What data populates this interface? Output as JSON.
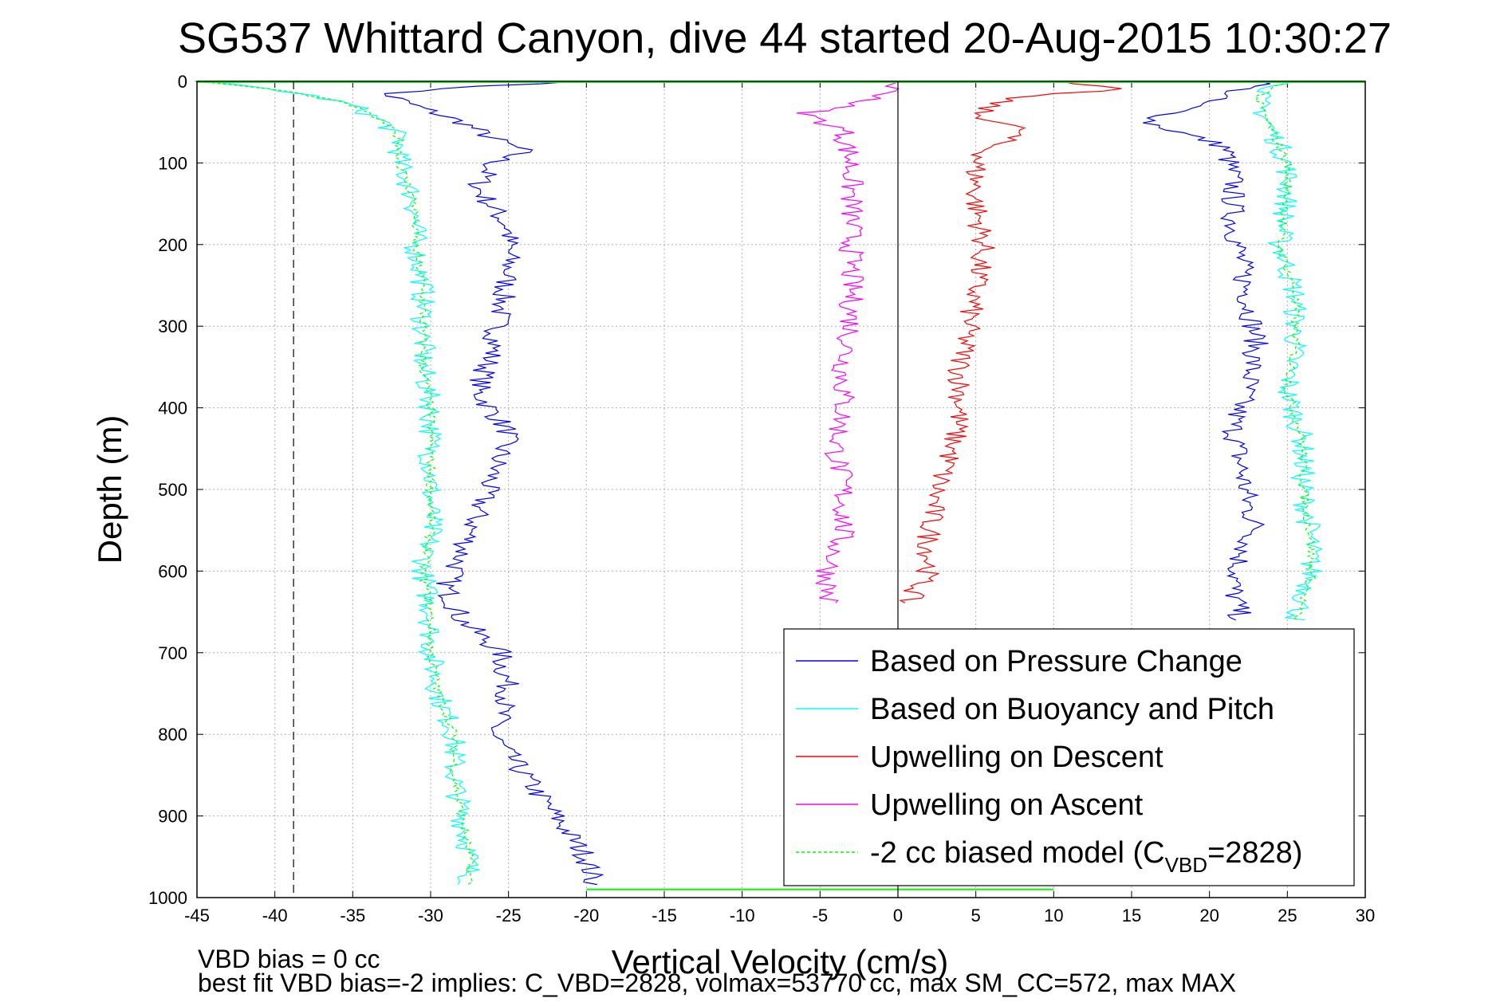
{
  "chart_data": {
    "type": "line",
    "title": "SG537 Whittard Canyon, dive 44 started 20-Aug-2015 10:30:27",
    "xlabel": "Vertical Velocity (cm/s)",
    "ylabel": "Depth (m)",
    "xlim": [
      -45,
      30
    ],
    "ylim": [
      0,
      1000
    ],
    "y_reversed": true,
    "grid": true,
    "x_ticks": [
      "-45",
      "-40",
      "-35",
      "-30",
      "-25",
      "-20",
      "-15",
      "-10",
      "-5",
      "0",
      "5",
      "10",
      "15",
      "20",
      "25",
      "30"
    ],
    "y_ticks": [
      "0",
      "100",
      "200",
      "300",
      "400",
      "500",
      "600",
      "700",
      "800",
      "900",
      "1000"
    ],
    "reference_lines": [
      {
        "axis": "x",
        "value": 0,
        "style": "solid",
        "color": "#000000"
      },
      {
        "axis": "x",
        "value": -38.8,
        "style": "dashed",
        "color": "#000000"
      }
    ],
    "legend_position": "bottom-right",
    "series": [
      {
        "name": "Based on Pressure Change",
        "color": "#0000ff",
        "style": "solid",
        "descent": {
          "depth": [
            0,
            5,
            15,
            30,
            50,
            70,
            85,
            100,
            130,
            180,
            230,
            280,
            330,
            380,
            430,
            480,
            530,
            580,
            620,
            660,
            700,
            750,
            800,
            850,
            900,
            950,
            985
          ],
          "velocity": [
            -20,
            -26,
            -33,
            -31,
            -28,
            -26,
            -24,
            -26,
            -27,
            -25,
            -25,
            -25.5,
            -26,
            -27,
            -25,
            -26,
            -27,
            -28,
            -29,
            -28,
            -25.5,
            -25,
            -26,
            -24,
            -22,
            -20,
            -19.5
          ]
        },
        "ascent": {
          "depth": [
            0,
            10,
            30,
            50,
            80,
            120,
            170,
            220,
            270,
            320,
            370,
            420,
            470,
            520,
            550,
            580,
            620,
            660
          ],
          "velocity": [
            24,
            22,
            19,
            16,
            21,
            21.5,
            21.5,
            22,
            22.5,
            23,
            22.5,
            21.5,
            22,
            22.5,
            23,
            22,
            21.5,
            22
          ]
        }
      },
      {
        "name": "Based on Buoyancy and Pitch",
        "color": "#00ffff",
        "style": "solid",
        "descent": {
          "depth": [
            0,
            10,
            20,
            30,
            50,
            70,
            100,
            150,
            200,
            250,
            300,
            350,
            400,
            450,
            500,
            550,
            600,
            650,
            700,
            750,
            800,
            850,
            900,
            950,
            985
          ],
          "velocity": [
            -45,
            -40,
            -37,
            -35,
            -33,
            -32,
            -32,
            -31,
            -31,
            -30.5,
            -30.5,
            -30.5,
            -30,
            -30,
            -30,
            -30,
            -30.5,
            -30,
            -30,
            -29.5,
            -28.5,
            -28.5,
            -28,
            -27.5,
            -27.5
          ]
        },
        "ascent": {
          "depth": [
            0,
            20,
            60,
            100,
            140,
            200,
            260,
            320,
            380,
            440,
            500,
            560,
            610,
            660
          ],
          "velocity": [
            25,
            23,
            24,
            25,
            25,
            24.5,
            25.5,
            25.5,
            25,
            26,
            26,
            26.5,
            26.5,
            25.5
          ]
        }
      },
      {
        "name": "Upwelling on Descent",
        "color": "#ff0000",
        "style": "solid",
        "depth": [
          0,
          10,
          20,
          40,
          60,
          80,
          100,
          150,
          200,
          250,
          300,
          350,
          400,
          450,
          500,
          550,
          600,
          640
        ],
        "velocity": [
          10,
          14,
          7,
          5,
          8,
          6,
          5,
          5,
          5.5,
          5,
          4.5,
          4,
          4,
          3.5,
          2.5,
          2,
          2,
          0.5
        ]
      },
      {
        "name": "Upwelling on Ascent",
        "color": "#ff00ff",
        "style": "solid",
        "depth": [
          0,
          20,
          40,
          60,
          100,
          150,
          200,
          250,
          300,
          350,
          400,
          450,
          500,
          550,
          600,
          640
        ],
        "velocity": [
          0,
          -1,
          -6,
          -3.5,
          -3,
          -3,
          -3,
          -3,
          -3,
          -3.5,
          -3.5,
          -4,
          -3.5,
          -3.5,
          -4.5,
          -4.5
        ]
      },
      {
        "name": "-2 cc biased model (C",
        "name_subscript": "VBD",
        "name_suffix": "=2828)",
        "color": "#00ff00",
        "style": "dashed",
        "descent": {
          "depth": [
            0,
            10,
            20,
            30,
            50,
            70,
            100,
            150,
            200,
            250,
            300,
            350,
            400,
            450,
            500,
            550,
            600,
            650,
            700,
            750,
            800,
            850,
            900,
            950,
            985
          ],
          "velocity": [
            -45,
            -40,
            -37,
            -35,
            -33,
            -32,
            -32,
            -31,
            -31,
            -30.5,
            -30.5,
            -30.5,
            -30,
            -30,
            -30,
            -30,
            -30.5,
            -30,
            -30,
            -29.5,
            -28.5,
            -28.5,
            -28,
            -27.5,
            -27.5
          ]
        },
        "ascent": {
          "depth": [
            0,
            20,
            60,
            100,
            140,
            200,
            260,
            320,
            380,
            440,
            500,
            560,
            610,
            660
          ],
          "velocity": [
            25,
            23,
            24,
            25,
            25,
            24.5,
            25.5,
            25.5,
            25,
            26,
            26,
            26.5,
            26.5,
            25.5
          ]
        }
      }
    ],
    "annotations": [
      "VBD bias = 0 cc",
      "best fit VBD bias=-2 implies: C_VBD=2828, volmax=53770 cc, max SM_CC=572, max MAX"
    ]
  }
}
